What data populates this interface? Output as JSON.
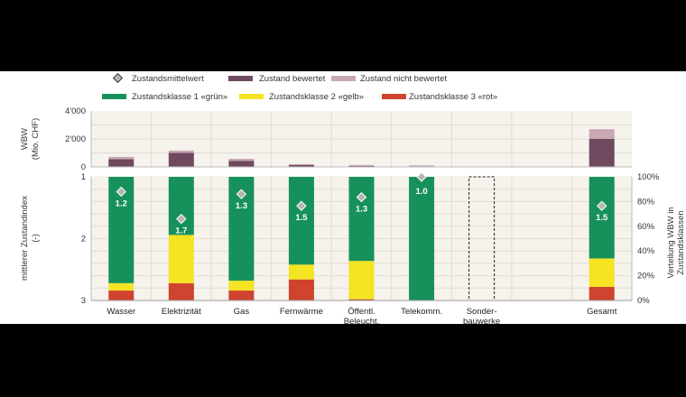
{
  "chart_data": {
    "type": "bar",
    "categories": [
      "Wasser",
      "Elektrizität",
      "Gas",
      "Fernwärme",
      "Öffentl.\nBeleucht.",
      "Telekomm.",
      "Sonder-\nbauwerke",
      "",
      "Gesamt"
    ],
    "legend": {
      "mean": "Zustandsmittelwert",
      "rated": "Zustand bewertet",
      "unrated": "Zustand nicht bewertet",
      "class1": "Zustandsklasse 1 «grün»",
      "class2": "Zustandsklasse 2 «gelb»",
      "class3": "Zustandsklasse 3 «rot»"
    },
    "colors": {
      "rated": "#6f4a5f",
      "unrated": "#c9a8b5",
      "class1": "#17915c",
      "class2": "#f4e424",
      "class3": "#d0432e",
      "marker": "#b5b5b5",
      "panel": "#f6f2ec",
      "axis": "#bbbbbb"
    },
    "top_panel": {
      "ylabel_line1": "WBW",
      "ylabel_line2": "(Mio. CHF)",
      "ylim": [
        0,
        4000
      ],
      "yticks": [
        "4'000",
        "2'000",
        "0"
      ],
      "ytick_values": [
        4000,
        2000,
        0
      ],
      "series": [
        {
          "name": "Zustand bewertet",
          "values": [
            550,
            1000,
            430,
            130,
            60,
            30,
            0,
            0,
            2000
          ]
        },
        {
          "name": "Zustand nicht bewertet",
          "values": [
            170,
            170,
            150,
            70,
            80,
            80,
            0,
            0,
            700
          ]
        }
      ]
    },
    "bottom_panel": {
      "ylabel_left_line1": "mittlerer Zustandindex",
      "ylabel_left_line2": "(-)",
      "ylabel_right_line1": "Verteilung WBW in",
      "ylabel_right_line2": "Zustandsklassen",
      "left_ylim": [
        1,
        3
      ],
      "left_ticks": [
        "1",
        "2",
        "3"
      ],
      "left_tick_values": [
        1,
        2,
        3
      ],
      "right_ylim": [
        0,
        100
      ],
      "right_ticks": [
        "100%",
        "80%",
        "60%",
        "40%",
        "20%",
        "0%"
      ],
      "right_tick_values": [
        100,
        80,
        60,
        40,
        20,
        0
      ],
      "series": [
        {
          "name": "Zustandsklasse 3 «rot»",
          "values": [
            8,
            14,
            8,
            17,
            1,
            0,
            null,
            null,
            11
          ]
        },
        {
          "name": "Zustandsklasse 2 «gelb»",
          "values": [
            6,
            39,
            8,
            12,
            31,
            0,
            null,
            null,
            23
          ]
        },
        {
          "name": "Zustandsklasse 1 «grün»",
          "values": [
            86,
            47,
            84,
            71,
            68,
            100,
            null,
            null,
            66
          ]
        }
      ],
      "mean_values": [
        1.2,
        1.7,
        1.3,
        1.5,
        1.3,
        1.0,
        null,
        null,
        1.5
      ],
      "mean_labels": [
        "1.2",
        "1.7",
        "1.3",
        "1.5",
        "1.3",
        "1.0",
        "",
        "",
        "1.5"
      ],
      "marker_positions": [
        1.24,
        1.68,
        1.28,
        1.47,
        1.33,
        1.0,
        null,
        null,
        1.47
      ],
      "no_data_outline_index": 6
    }
  }
}
